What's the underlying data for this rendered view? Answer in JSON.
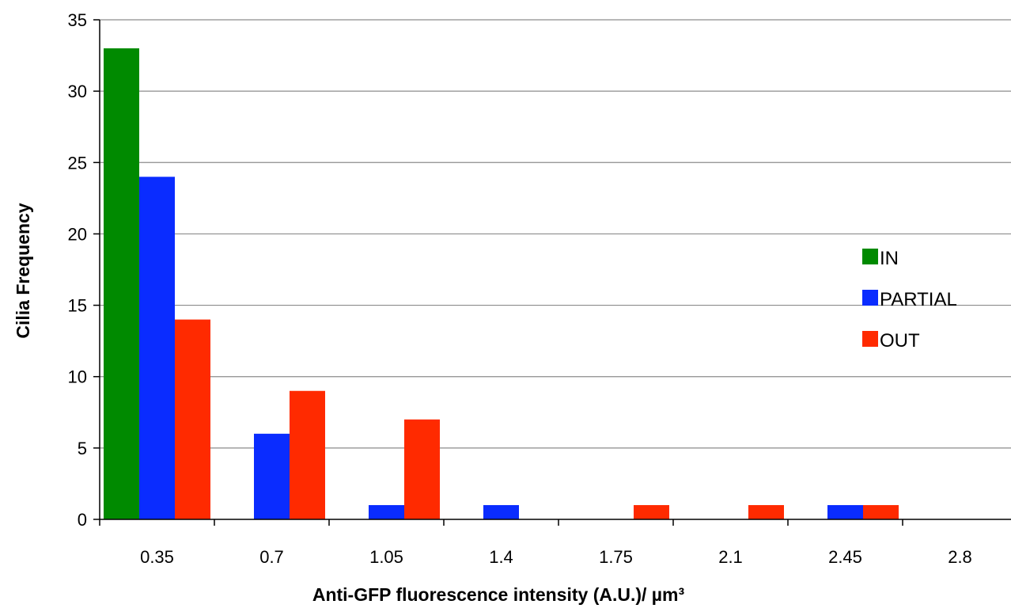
{
  "chart_data": {
    "type": "bar",
    "categories": [
      "0.35",
      "0.7",
      "1.05",
      "1.4",
      "1.75",
      "2.1",
      "2.45",
      "2.8"
    ],
    "series": [
      {
        "name": "IN",
        "color": "#008a00",
        "values": [
          33,
          0,
          0,
          0,
          0,
          0,
          0,
          0
        ]
      },
      {
        "name": "PARTIAL",
        "color": "#0a2cff",
        "values": [
          24,
          6,
          1,
          1,
          0,
          0,
          1,
          0
        ]
      },
      {
        "name": "OUT",
        "color": "#ff2a00",
        "values": [
          14,
          9,
          7,
          0,
          1,
          1,
          1,
          0
        ]
      }
    ],
    "xlabel": "Anti-GFP fluorescence intensity (A.U.)/ µm³",
    "ylabel": "Cilia Frequency",
    "ylim": [
      0,
      35
    ],
    "yticks": [
      0,
      5,
      10,
      15,
      20,
      25,
      30,
      35
    ],
    "grid": true,
    "legend_position": "right"
  }
}
